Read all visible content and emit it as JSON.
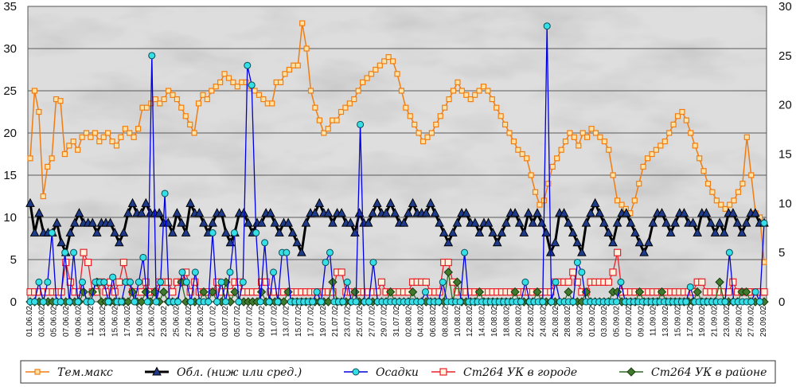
{
  "chart_data": {
    "type": "line",
    "title": "",
    "xlabel": "",
    "ylabel": "",
    "ylim": [
      0,
      35
    ],
    "ylim_right": [
      0,
      30
    ],
    "y_ticks_left": [
      "0",
      "5",
      "10",
      "15",
      "20",
      "25",
      "30",
      "35"
    ],
    "y_ticks_right": [
      "0",
      "5",
      "10",
      "15",
      "20",
      "25",
      "30"
    ],
    "grid": true,
    "legend_position": "bottom",
    "x_tick_labels": [
      "01.06.02",
      "03.06.02",
      "05.06.02",
      "07.06.02",
      "09.06.02",
      "11.06.02",
      "13.06.02",
      "15.06.02",
      "17.06.02",
      "19.06.02",
      "21.06.02",
      "23.06.02",
      "25.06.02",
      "27.06.02",
      "29.06.02",
      "01.07.02",
      "03.07.02",
      "05.07.02",
      "07.07.02",
      "09.07.02",
      "11.07.02",
      "13.07.02",
      "15.07.02",
      "17.07.02",
      "19.07.02",
      "21.07.02",
      "23.07.02",
      "25.07.02",
      "27.07.02",
      "29.07.02",
      "31.07.02",
      "02.08.02",
      "04.08.02",
      "06.08.02",
      "08.08.02",
      "10.08.02",
      "12.08.02",
      "14.08.02",
      "16.08.02",
      "18.08.02",
      "20.08.02",
      "22.08.02",
      "24.08.02",
      "26.08.02",
      "28.08.02",
      "30.08.02",
      "01.09.02",
      "03.09.02",
      "05.09.02",
      "07.09.02",
      "09.09.02",
      "11.09.02",
      "13.09.02",
      "15.09.02",
      "17.09.02",
      "19.09.02",
      "21.09.02",
      "23.09.02",
      "25.09.02",
      "27.09.02",
      "29.09.02"
    ],
    "series": [
      {
        "name": "Тем.макс",
        "axis": "left",
        "color": "#f07d12",
        "marker": "square",
        "values": [
          17,
          25,
          22.5,
          12.5,
          16,
          17,
          24,
          23.8,
          17.5,
          18.5,
          19,
          18,
          19.5,
          20,
          19.5,
          20,
          19,
          19.5,
          20,
          19,
          18.5,
          19.5,
          20.5,
          20,
          19.5,
          20.5,
          23,
          23,
          23.5,
          24,
          23.5,
          24,
          25,
          24.5,
          24,
          23,
          22,
          21,
          20,
          23.5,
          24.5,
          24,
          25,
          25.5,
          26,
          27,
          26.5,
          26,
          25.5,
          26,
          26,
          25.5,
          25,
          24.5,
          24,
          23.5,
          23.5,
          26,
          26,
          27,
          27.5,
          28,
          28,
          33,
          30,
          25,
          23,
          21.5,
          20,
          20.5,
          21.5,
          21.5,
          22.5,
          23,
          23.5,
          24,
          25,
          26,
          26.5,
          27,
          27.5,
          28,
          28.5,
          29,
          28.5,
          27,
          25,
          23,
          22,
          21,
          20,
          19,
          19.5,
          20,
          21,
          22,
          23,
          24,
          25,
          26,
          25,
          24.5,
          24,
          24.5,
          25,
          25.5,
          25,
          24,
          23,
          22,
          21,
          20,
          19,
          18,
          17.5,
          17,
          15,
          13,
          11.5,
          12,
          14,
          16,
          17,
          18,
          19,
          20,
          19.5,
          18.5,
          20,
          19.5,
          20.5,
          20,
          19.5,
          19,
          18,
          15,
          12,
          11.5,
          11,
          10.5,
          12,
          14,
          16,
          17,
          17.5,
          18,
          18.5,
          19,
          20,
          21,
          22,
          22.5,
          21.5,
          20,
          18.5,
          17,
          15.5,
          14,
          13,
          12,
          11.5,
          11,
          11.5,
          12,
          13,
          14,
          19.5,
          15,
          10.5,
          10,
          4.7
        ]
      },
      {
        "name": "Обл. (ниж или сред.)",
        "axis": "right",
        "color": "#000000",
        "marker": "triangle",
        "values": [
          10,
          7,
          9,
          7,
          7,
          7,
          8,
          6,
          5,
          7,
          8,
          9,
          8,
          8,
          8,
          7,
          8,
          8,
          8,
          7,
          6,
          7,
          9,
          10,
          9,
          9,
          10,
          9,
          9,
          9,
          8,
          8,
          7,
          9,
          8,
          7,
          10,
          9,
          9,
          8,
          7,
          8,
          9,
          9,
          7,
          6,
          7,
          9,
          9,
          8,
          7,
          8,
          8,
          9,
          9,
          8,
          7,
          8,
          8,
          7,
          6,
          5,
          8,
          9,
          9,
          10,
          9,
          9,
          8,
          9,
          9,
          8,
          8,
          7,
          9,
          8,
          8,
          9,
          10,
          9,
          9,
          10,
          9,
          8,
          8,
          9,
          10,
          9,
          9,
          9,
          10,
          9,
          8,
          7,
          6,
          7,
          8,
          9,
          9,
          8,
          8,
          7,
          8,
          8,
          7,
          6,
          7,
          8,
          9,
          9,
          8,
          7,
          9,
          8,
          9,
          8,
          7,
          5,
          6,
          9,
          9,
          8,
          7,
          6,
          5,
          8,
          9,
          10,
          9,
          8,
          7,
          6,
          8,
          9,
          9,
          8,
          7,
          6,
          5,
          6,
          8,
          9,
          9,
          8,
          7,
          8,
          9,
          9,
          8,
          8,
          7,
          9,
          9,
          8,
          7,
          8,
          7,
          9,
          9,
          8,
          7,
          8,
          9,
          9,
          8,
          8
        ]
      },
      {
        "name": "Осадки",
        "axis": "right",
        "color": "#0000e0",
        "marker": "circle",
        "values": [
          0,
          0,
          2,
          0,
          2,
          7,
          0,
          0,
          5,
          0,
          5,
          0,
          2,
          0,
          0,
          2,
          2,
          2,
          0,
          2.5,
          0,
          0,
          2,
          2,
          0,
          2,
          4.5,
          0,
          25,
          0,
          2,
          11,
          0,
          0,
          0,
          3,
          2,
          0,
          3,
          0,
          0,
          0,
          7,
          0,
          2,
          0,
          3,
          7,
          0,
          2,
          24,
          22,
          7,
          0,
          6,
          0,
          3,
          0,
          5,
          5,
          0,
          0,
          0,
          0,
          0,
          0,
          1,
          0,
          4,
          5,
          0,
          0,
          0,
          2,
          0,
          0,
          18,
          0,
          0,
          4,
          0,
          0,
          0,
          0,
          0,
          0,
          0,
          0,
          0,
          0,
          0,
          1,
          0,
          0,
          0,
          2,
          0,
          0,
          0,
          0,
          5,
          0,
          0,
          0,
          0,
          0,
          0,
          0,
          0,
          0,
          0,
          0,
          0,
          0,
          2,
          0,
          0,
          0,
          0,
          28,
          0,
          2,
          0,
          0,
          0,
          0,
          4,
          3,
          0,
          0,
          0,
          0,
          0,
          0,
          0,
          0,
          2,
          0,
          0,
          0,
          0,
          0,
          0,
          0,
          0,
          0,
          0,
          0,
          0,
          0,
          0,
          0,
          1.5,
          0,
          0,
          0,
          0,
          0,
          0,
          0,
          0,
          5,
          0,
          0,
          0,
          0,
          0,
          1,
          0,
          8
        ]
      },
      {
        "name": "Ст264 УК в городе",
        "axis": "right",
        "color": "#e8202a",
        "marker": "square",
        "values": [
          1,
          1,
          1,
          1,
          1,
          1,
          1,
          1,
          4,
          2,
          1,
          1,
          5,
          4,
          1,
          1,
          2,
          1,
          2,
          1,
          2,
          4,
          2,
          1,
          1,
          1,
          2,
          1,
          1,
          2,
          2,
          2,
          1,
          2,
          2,
          3,
          1,
          2,
          1,
          1,
          1,
          1,
          2,
          1,
          1,
          1,
          2,
          2,
          1,
          1,
          1,
          1,
          2,
          2,
          1,
          1,
          1,
          1,
          1,
          1,
          1,
          1,
          1,
          1,
          1,
          1,
          1,
          1,
          1,
          3,
          3,
          1,
          1,
          1,
          1,
          1,
          1,
          1,
          1,
          2,
          1,
          1,
          1,
          1,
          1,
          1,
          2,
          2,
          2,
          2,
          1,
          1,
          1,
          4,
          4,
          2,
          1,
          1,
          1,
          1,
          1,
          1,
          1,
          1,
          1,
          1,
          1,
          1,
          1,
          1,
          1,
          1,
          1,
          1,
          1,
          1,
          1,
          1,
          2,
          2,
          2,
          2,
          3,
          2,
          1,
          1,
          2,
          2,
          2,
          2,
          2,
          3,
          5,
          1,
          1,
          1,
          1,
          1,
          1,
          1,
          1,
          1,
          1,
          1,
          1,
          1,
          1,
          1,
          1,
          1,
          2,
          2,
          1,
          1,
          1,
          1,
          1,
          1,
          2,
          1,
          1,
          1,
          1,
          1,
          1,
          1
        ]
      },
      {
        "name": "Ст264 УК в районе",
        "axis": "right",
        "color": "#2f6b22",
        "marker": "diamond",
        "values": [
          0,
          0,
          0,
          0,
          0,
          0,
          0,
          0,
          0,
          0,
          0,
          0,
          1,
          0,
          1,
          2,
          0,
          0,
          0,
          0,
          0,
          0,
          0,
          1,
          0,
          0,
          1,
          0,
          1,
          0,
          1,
          0,
          0,
          0,
          2,
          0,
          0,
          0,
          0,
          1,
          0,
          1,
          0,
          0,
          2,
          0,
          1,
          0,
          0,
          0,
          0,
          0,
          1,
          0,
          0,
          0,
          0,
          0,
          1,
          0,
          0,
          0,
          0,
          0,
          0,
          0,
          0,
          0,
          2,
          0,
          0,
          0,
          0,
          1,
          0,
          0,
          0,
          0,
          0,
          0,
          0,
          1,
          0,
          0,
          0,
          0,
          1,
          0,
          0,
          0,
          0,
          0,
          0,
          0,
          3,
          0,
          2,
          0,
          0,
          0,
          0,
          1,
          0,
          0,
          0,
          0,
          0,
          0,
          0,
          1,
          0,
          0,
          0,
          0,
          1,
          0,
          0,
          0,
          0,
          0,
          0,
          1,
          0,
          0,
          0,
          1,
          0,
          0,
          0,
          0,
          0,
          1,
          1,
          0,
          0,
          0,
          0,
          1,
          0,
          0,
          0,
          0,
          1,
          0,
          0,
          0,
          0,
          0,
          0,
          0,
          1,
          0,
          0,
          0,
          0,
          2,
          0,
          0,
          0,
          0,
          1,
          1,
          0,
          0,
          0,
          0
        ]
      }
    ]
  }
}
